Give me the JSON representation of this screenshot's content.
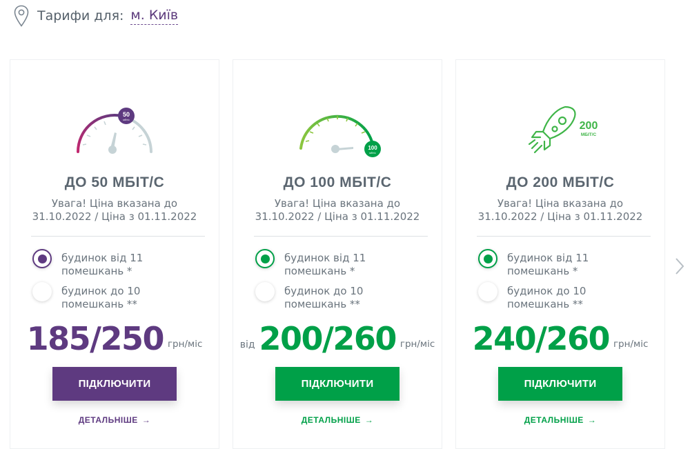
{
  "header": {
    "label": "Тарифи для:",
    "city": "м. Київ"
  },
  "colors": {
    "purple": "#5e3a80",
    "green": "#00a048",
    "lightGreen": "#6cc04a",
    "magenta": "#b0297a",
    "gaugeGray": "#c6d3d6"
  },
  "cards": [
    {
      "icon": "speedometer-50-icon",
      "gauge_value": "50",
      "gauge_unit": "мбіт/с",
      "speed": "ДО 50 МБІТ/С",
      "note": "Увага! Ціна вказана до 31.10.2022 / Ціна з 01.11.2022",
      "options": [
        {
          "label": "будинок від 11 помешкань *",
          "selected": true
        },
        {
          "label": "будинок до 10 помешкань **",
          "selected": false
        }
      ],
      "price_from": "",
      "price": "185/250",
      "price_unit": "грн/міс",
      "button": "ПІДКЛЮЧИТИ",
      "more": "ДЕТАЛЬНІШЕ"
    },
    {
      "icon": "speedometer-100-icon",
      "gauge_value": "100",
      "gauge_unit": "мбіт/с",
      "speed": "ДО 100 МБІТ/С",
      "note": "Увага! Ціна вказана до 31.10.2022 / Ціна з 01.11.2022",
      "options": [
        {
          "label": "будинок від 11 помешкань *",
          "selected": true
        },
        {
          "label": "будинок до 10 помешкань **",
          "selected": false
        }
      ],
      "price_from": "від",
      "price": "200/260",
      "price_unit": "грн/міс",
      "button": "ПІДКЛЮЧИТИ",
      "more": "ДЕТАЛЬНІШЕ"
    },
    {
      "icon": "rocket-icon",
      "gauge_value": "200",
      "gauge_unit": "МБІТ/С",
      "speed": "ДО 200 МБІТ/С",
      "note": "Увага! Ціна вказана до 31.10.2022 / Ціна з 01.11.2022",
      "options": [
        {
          "label": "будинок від 11 помешкань *",
          "selected": true
        },
        {
          "label": "будинок до 10 помешкань **",
          "selected": false
        }
      ],
      "price_from": "",
      "price": "240/260",
      "price_unit": "грн/міс",
      "button": "ПІДКЛЮЧИТИ",
      "more": "ДЕТАЛЬНІШЕ"
    }
  ],
  "nav": {
    "next_icon": "chevron-right-icon"
  }
}
